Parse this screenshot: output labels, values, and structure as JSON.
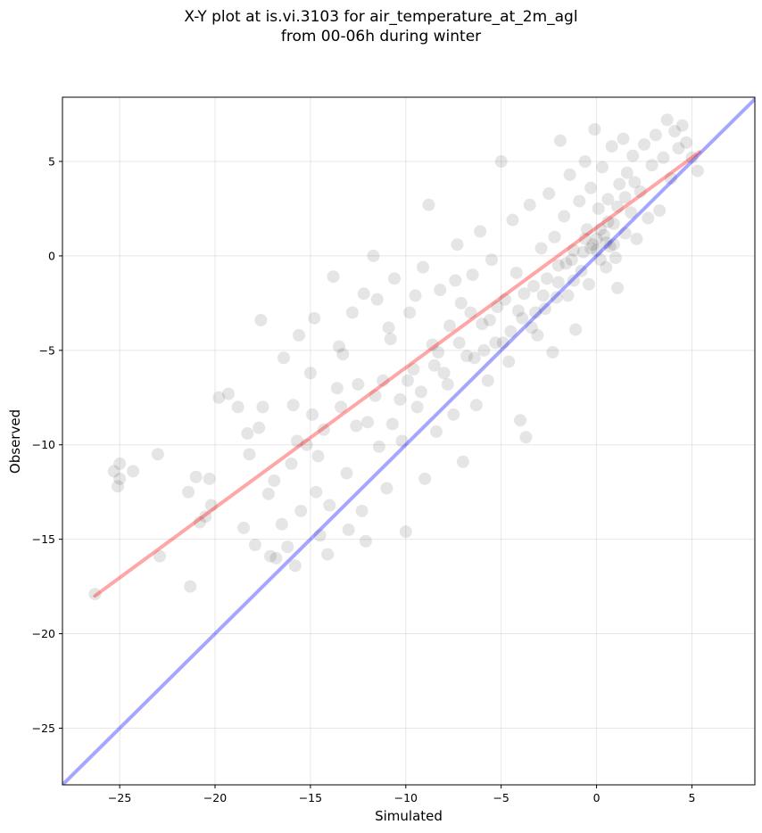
{
  "chart_data": {
    "type": "scatter",
    "title": [
      "X-Y plot at is.vi.3103 for air_temperature_at_2m_agl",
      "from 00-06h during winter"
    ],
    "xlabel": "Simulated",
    "ylabel": "Observed",
    "xlim": [
      -28.0,
      8.3
    ],
    "ylim": [
      -28.0,
      8.4
    ],
    "xticks": [
      -25,
      -20,
      -15,
      -10,
      -5,
      0,
      5
    ],
    "yticks": [
      -25,
      -20,
      -15,
      -10,
      -5,
      0,
      5
    ],
    "xtick_labels": [
      "−25",
      "−20",
      "−15",
      "−10",
      "−5",
      "0",
      "5"
    ],
    "ytick_labels": [
      "−25",
      "−20",
      "−15",
      "−10",
      "−5",
      "0",
      "5"
    ],
    "grid": true,
    "point_color": "#000000",
    "point_opacity": 0.1,
    "points": [
      [
        -26.3,
        -17.9
      ],
      [
        -25.0,
        -11.0
      ],
      [
        -25.3,
        -11.4
      ],
      [
        -25.1,
        -12.2
      ],
      [
        -25.0,
        -11.8
      ],
      [
        -24.3,
        -11.4
      ],
      [
        -23.0,
        -10.5
      ],
      [
        -22.9,
        -15.9
      ],
      [
        -21.4,
        -12.5
      ],
      [
        -21.3,
        -17.5
      ],
      [
        -21.0,
        -11.7
      ],
      [
        -20.8,
        -14.1
      ],
      [
        -20.5,
        -13.8
      ],
      [
        -20.3,
        -11.8
      ],
      [
        -20.2,
        -13.2
      ],
      [
        -19.8,
        -7.5
      ],
      [
        -19.3,
        -7.3
      ],
      [
        -18.8,
        -8.0
      ],
      [
        -18.5,
        -14.4
      ],
      [
        -18.3,
        -9.4
      ],
      [
        -18.2,
        -10.5
      ],
      [
        -17.9,
        -15.3
      ],
      [
        -17.7,
        -9.1
      ],
      [
        -17.6,
        -3.4
      ],
      [
        -17.5,
        -8.0
      ],
      [
        -17.2,
        -12.6
      ],
      [
        -17.1,
        -15.9
      ],
      [
        -16.8,
        -16.0
      ],
      [
        -16.5,
        -14.2
      ],
      [
        -16.4,
        -5.4
      ],
      [
        -16.2,
        -15.4
      ],
      [
        -16.0,
        -11.0
      ],
      [
        -15.9,
        -7.9
      ],
      [
        -15.8,
        -16.4
      ],
      [
        -15.6,
        -4.2
      ],
      [
        -15.5,
        -13.5
      ],
      [
        -15.2,
        -10.0
      ],
      [
        -15.0,
        -6.2
      ],
      [
        -14.9,
        -8.4
      ],
      [
        -14.7,
        -12.5
      ],
      [
        -14.5,
        -14.8
      ],
      [
        -14.3,
        -9.2
      ],
      [
        -14.1,
        -15.8
      ],
      [
        -14.0,
        -13.2
      ],
      [
        -13.8,
        -1.1
      ],
      [
        -13.6,
        -7.0
      ],
      [
        -13.3,
        -5.2
      ],
      [
        -13.1,
        -11.5
      ],
      [
        -13.0,
        -14.5
      ],
      [
        -12.8,
        -3.0
      ],
      [
        -12.5,
        -6.8
      ],
      [
        -12.3,
        -13.5
      ],
      [
        -12.1,
        -15.1
      ],
      [
        -12.0,
        -8.8
      ],
      [
        -11.7,
        0.0
      ],
      [
        -11.5,
        -2.3
      ],
      [
        -11.4,
        -10.1
      ],
      [
        -11.2,
        -6.6
      ],
      [
        -11.0,
        -12.3
      ],
      [
        -10.8,
        -4.4
      ],
      [
        -10.6,
        -1.2
      ],
      [
        -10.3,
        -7.6
      ],
      [
        -10.2,
        -9.8
      ],
      [
        -10.0,
        -14.6
      ],
      [
        -9.8,
        -3.0
      ],
      [
        -9.6,
        -6.0
      ],
      [
        -9.4,
        -8.0
      ],
      [
        -9.1,
        -0.6
      ],
      [
        -9.0,
        -11.8
      ],
      [
        -8.8,
        2.7
      ],
      [
        -8.6,
        -4.7
      ],
      [
        -8.4,
        -9.3
      ],
      [
        -8.2,
        -1.8
      ],
      [
        -8.0,
        -6.2
      ],
      [
        -7.7,
        -3.7
      ],
      [
        -7.5,
        -8.4
      ],
      [
        -7.3,
        0.6
      ],
      [
        -7.1,
        -2.5
      ],
      [
        -7.0,
        -10.9
      ],
      [
        -6.8,
        -5.3
      ],
      [
        -6.5,
        -1.0
      ],
      [
        -6.3,
        -7.9
      ],
      [
        -6.1,
        1.3
      ],
      [
        -6.0,
        -3.6
      ],
      [
        -5.7,
        -6.6
      ],
      [
        -5.5,
        -0.2
      ],
      [
        -5.3,
        -4.6
      ],
      [
        -5.0,
        5.0
      ],
      [
        -4.8,
        -2.3
      ],
      [
        -4.6,
        -5.6
      ],
      [
        -4.4,
        1.9
      ],
      [
        -4.2,
        -0.9
      ],
      [
        -4.0,
        -8.7
      ],
      [
        -3.9,
        -3.3
      ],
      [
        -3.7,
        -9.6
      ],
      [
        -3.5,
        2.7
      ],
      [
        -3.3,
        -1.6
      ],
      [
        -3.1,
        -4.2
      ],
      [
        -2.9,
        0.4
      ],
      [
        -2.7,
        -2.8
      ],
      [
        -2.5,
        3.3
      ],
      [
        -2.3,
        -5.1
      ],
      [
        -2.2,
        1.0
      ],
      [
        -2.0,
        -0.5
      ],
      [
        -1.9,
        6.1
      ],
      [
        -1.7,
        2.1
      ],
      [
        -1.5,
        -2.1
      ],
      [
        -1.4,
        4.3
      ],
      [
        -1.2,
        0.3
      ],
      [
        -1.1,
        -3.9
      ],
      [
        -0.9,
        2.9
      ],
      [
        -0.8,
        -0.8
      ],
      [
        -0.6,
        5.0
      ],
      [
        -0.5,
        1.4
      ],
      [
        -0.4,
        -1.5
      ],
      [
        -0.3,
        3.6
      ],
      [
        -0.2,
        0.6
      ],
      [
        -0.1,
        6.7
      ],
      [
        0.0,
        0.9
      ],
      [
        0.1,
        2.5
      ],
      [
        0.2,
        -0.2
      ],
      [
        0.3,
        4.7
      ],
      [
        0.4,
        1.1
      ],
      [
        0.5,
        -0.6
      ],
      [
        0.6,
        3.0
      ],
      [
        0.7,
        0.5
      ],
      [
        0.8,
        5.8
      ],
      [
        0.9,
        1.7
      ],
      [
        1.0,
        -0.1
      ],
      [
        1.1,
        -1.7
      ],
      [
        1.2,
        3.8
      ],
      [
        1.4,
        6.2
      ],
      [
        1.5,
        1.2
      ],
      [
        1.6,
        4.4
      ],
      [
        1.8,
        2.3
      ],
      [
        1.9,
        5.3
      ],
      [
        2.1,
        0.9
      ],
      [
        2.3,
        3.4
      ],
      [
        2.5,
        5.9
      ],
      [
        2.7,
        2.0
      ],
      [
        2.9,
        4.8
      ],
      [
        3.1,
        6.4
      ],
      [
        3.3,
        2.4
      ],
      [
        3.5,
        5.2
      ],
      [
        3.7,
        7.2
      ],
      [
        3.9,
        4.1
      ],
      [
        4.1,
        6.6
      ],
      [
        4.3,
        5.7
      ],
      [
        4.5,
        6.9
      ],
      [
        4.7,
        6.0
      ],
      [
        5.0,
        5.2
      ],
      [
        5.3,
        4.5
      ],
      [
        -14.8,
        -3.3
      ],
      [
        -13.5,
        -4.8
      ],
      [
        -12.2,
        -2.0
      ],
      [
        -10.9,
        -3.8
      ],
      [
        -9.5,
        -2.1
      ],
      [
        -8.3,
        -5.1
      ],
      [
        -7.4,
        -1.3
      ],
      [
        -6.6,
        -3.0
      ],
      [
        -5.9,
        -5.0
      ],
      [
        -5.2,
        -2.7
      ],
      [
        -4.5,
        -4.0
      ],
      [
        -3.8,
        -2.0
      ],
      [
        -3.2,
        -3.0
      ],
      [
        -2.6,
        -1.2
      ],
      [
        -2.1,
        -2.2
      ],
      [
        -1.6,
        -0.4
      ],
      [
        -1.2,
        -1.3
      ],
      [
        -0.7,
        0.2
      ],
      [
        -0.3,
        0.4
      ],
      [
        0.2,
        1.4
      ],
      [
        0.6,
        1.8
      ],
      [
        1.1,
        2.6
      ],
      [
        1.5,
        3.1
      ],
      [
        2.0,
        3.9
      ],
      [
        -16.9,
        -11.9
      ],
      [
        -15.7,
        -9.8
      ],
      [
        -14.6,
        -10.6
      ],
      [
        -13.4,
        -8.0
      ],
      [
        -12.6,
        -9.0
      ],
      [
        -11.6,
        -7.4
      ],
      [
        -10.7,
        -8.9
      ],
      [
        -9.9,
        -6.6
      ],
      [
        -9.2,
        -7.2
      ],
      [
        -8.5,
        -5.8
      ],
      [
        -7.8,
        -6.8
      ],
      [
        -7.2,
        -4.6
      ],
      [
        -6.4,
        -5.4
      ],
      [
        -5.6,
        -3.4
      ],
      [
        -4.9,
        -4.6
      ],
      [
        -4.1,
        -2.9
      ],
      [
        -3.4,
        -3.8
      ],
      [
        -2.8,
        -2.1
      ],
      [
        -2.0,
        -1.4
      ],
      [
        -1.3,
        -0.2
      ],
      [
        -0.6,
        0.9
      ],
      [
        0.0,
        0.3
      ],
      [
        0.5,
        0.7
      ],
      [
        0.9,
        0.6
      ]
    ],
    "fit_line": {
      "color": "#ff0000",
      "opacity": 0.35,
      "x": [
        -26.3,
        5.4
      ],
      "y": [
        -18.0,
        5.5
      ]
    },
    "identity_line": {
      "color": "#0000ff",
      "opacity": 0.35,
      "x": [
        -28.0,
        8.3
      ],
      "y": [
        -28.0,
        8.3
      ]
    }
  }
}
